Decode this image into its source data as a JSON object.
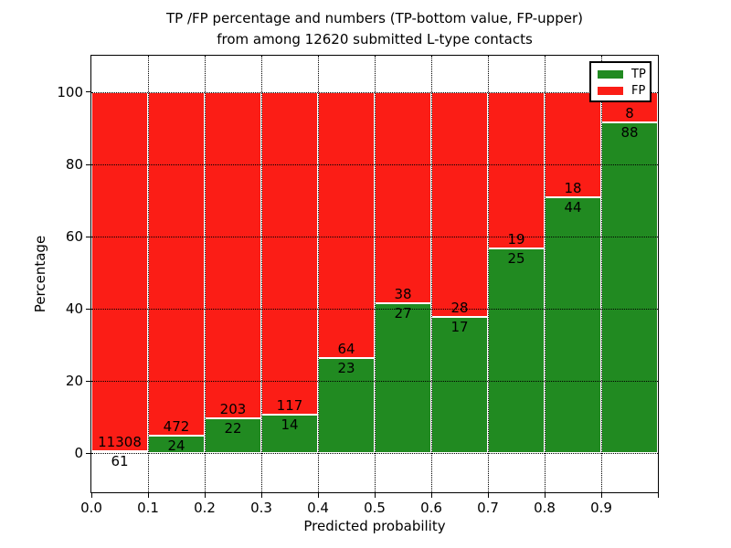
{
  "figure": {
    "title_line1": "TP /FP percentage and numbers (TP-bottom value, FP-upper)",
    "title_line2": "from among 12620 submitted L-type contacts"
  },
  "chart_data": {
    "type": "bar",
    "stacked": true,
    "title": "TP /FP percentage and numbers (TP-bottom value, FP-upper)\nfrom among 12620 submitted L-type contacts",
    "xlabel": "Predicted probability",
    "ylabel": "Percentage",
    "total_contacts": 12620,
    "bin_edges": [
      0.0,
      0.1,
      0.2,
      0.3,
      0.4,
      0.5,
      0.6,
      0.7,
      0.8,
      0.9,
      1.0
    ],
    "series": [
      {
        "name": "TP",
        "color": "#218a21",
        "counts": [
          61,
          24,
          22,
          14,
          23,
          27,
          17,
          25,
          44,
          88
        ],
        "percent": [
          0.54,
          4.84,
          9.78,
          10.69,
          26.44,
          41.54,
          37.78,
          56.82,
          70.97,
          91.67
        ]
      },
      {
        "name": "FP",
        "color": "#fb1d16",
        "counts": [
          11308,
          472,
          203,
          117,
          64,
          38,
          28,
          19,
          18,
          8
        ],
        "percent": [
          99.46,
          95.16,
          90.22,
          89.31,
          73.56,
          58.46,
          62.22,
          43.18,
          29.03,
          8.33
        ]
      }
    ],
    "xticks": [
      "0.0",
      "0.1",
      "0.2",
      "0.3",
      "0.4",
      "0.5",
      "0.6",
      "0.7",
      "0.8",
      "0.9"
    ],
    "yticks": [
      "0",
      "20",
      "40",
      "60",
      "80",
      "100"
    ],
    "xlim": [
      0.0,
      1.0
    ],
    "ylim": [
      -10.8,
      110.1
    ],
    "grid": true,
    "grid_style": "dotted",
    "bar_edge_color": "#ffffff",
    "legend": {
      "position": "upper right",
      "entries": [
        {
          "label": "TP",
          "color": "#218a21"
        },
        {
          "label": "FP",
          "color": "#fb1d16"
        }
      ]
    }
  }
}
